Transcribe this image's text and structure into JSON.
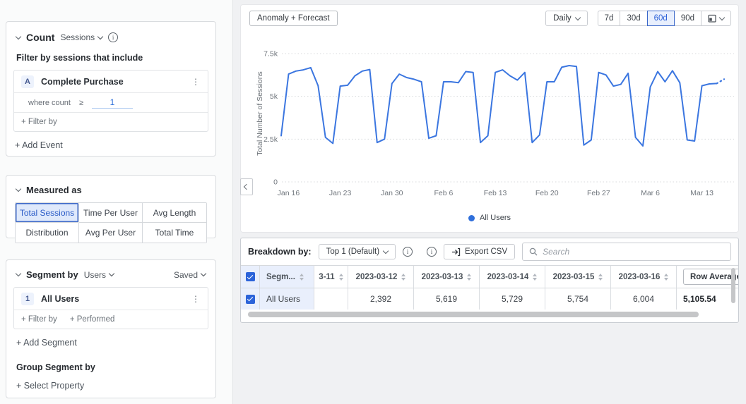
{
  "sidebar": {
    "count_section": {
      "title": "Count",
      "metric_dropdown": "Sessions",
      "filter_heading": "Filter by sessions that include",
      "event_card": {
        "badge": "A",
        "name": "Complete Purchase",
        "where_label": "where count",
        "operator": "≥",
        "value": "1",
        "filter_by_label": "+ Filter by"
      },
      "add_event_label": "+ Add Event"
    },
    "measured_as": {
      "title": "Measured as",
      "selected": "Total Sessions",
      "options": [
        "Total Sessions",
        "Time Per User",
        "Avg Length",
        "Distribution",
        "Avg Per User",
        "Total Time"
      ]
    },
    "segment_section": {
      "title": "Segment by",
      "type_dropdown": "Users",
      "saved_dropdown": "Saved",
      "segment_card": {
        "badge": "1",
        "name": "All Users",
        "filter_by_label": "+ Filter by",
        "performed_label": "+ Performed"
      },
      "add_segment_label": "+ Add Segment",
      "group_heading": "Group Segment by",
      "select_property_label": "+ Select Property"
    }
  },
  "chart_panel": {
    "anomaly_forecast_label": "Anomaly + Forecast",
    "granularity_dropdown": "Daily",
    "range_options": [
      "7d",
      "30d",
      "60d",
      "90d"
    ],
    "selected_range": "60d",
    "legend_label": "All Users",
    "legend_color": "#2f6fdb"
  },
  "chart_data": {
    "type": "line",
    "title": "",
    "xlabel": "",
    "ylabel": "Total Number of Sessions",
    "x_tick_labels": [
      "Jan 16",
      "Jan 23",
      "Jan 30",
      "Feb 6",
      "Feb 13",
      "Feb 20",
      "Feb 27",
      "Mar 6",
      "Mar 13"
    ],
    "x_tick_indices": [
      1,
      8,
      15,
      22,
      29,
      36,
      43,
      50,
      57
    ],
    "y_ticks": [
      0,
      2500,
      5000,
      7500
    ],
    "y_tick_labels": [
      "0",
      "2.5k",
      "5k",
      "7.5k"
    ],
    "ylim": [
      0,
      8000
    ],
    "grid": "horizontal-dotted",
    "legend_position": "bottom",
    "series": [
      {
        "name": "All Users",
        "color": "#3b76e0",
        "forecast_tail_points": 1,
        "dates": [
          "2023-01-15",
          "2023-01-16",
          "2023-01-17",
          "2023-01-18",
          "2023-01-19",
          "2023-01-20",
          "2023-01-21",
          "2023-01-22",
          "2023-01-23",
          "2023-01-24",
          "2023-01-25",
          "2023-01-26",
          "2023-01-27",
          "2023-01-28",
          "2023-01-29",
          "2023-01-30",
          "2023-01-31",
          "2023-02-01",
          "2023-02-02",
          "2023-02-03",
          "2023-02-04",
          "2023-02-05",
          "2023-02-06",
          "2023-02-07",
          "2023-02-08",
          "2023-02-09",
          "2023-02-10",
          "2023-02-11",
          "2023-02-12",
          "2023-02-13",
          "2023-02-14",
          "2023-02-15",
          "2023-02-16",
          "2023-02-17",
          "2023-02-18",
          "2023-02-19",
          "2023-02-20",
          "2023-02-21",
          "2023-02-22",
          "2023-02-23",
          "2023-02-24",
          "2023-02-25",
          "2023-02-26",
          "2023-02-27",
          "2023-02-28",
          "2023-03-01",
          "2023-03-02",
          "2023-03-03",
          "2023-03-04",
          "2023-03-05",
          "2023-03-06",
          "2023-03-07",
          "2023-03-08",
          "2023-03-09",
          "2023-03-10",
          "2023-03-11",
          "2023-03-12",
          "2023-03-13",
          "2023-03-14",
          "2023-03-15",
          "2023-03-16"
        ],
        "values": [
          2700,
          6300,
          6480,
          6550,
          6680,
          5620,
          2600,
          2250,
          5600,
          5650,
          6200,
          6480,
          6570,
          2300,
          2500,
          5750,
          6300,
          6100,
          6000,
          5850,
          2550,
          2700,
          5850,
          5850,
          5800,
          6450,
          6400,
          2300,
          2700,
          6400,
          6550,
          6200,
          5950,
          6400,
          2300,
          2750,
          5850,
          5850,
          6700,
          6800,
          6750,
          2150,
          2450,
          6400,
          6250,
          5600,
          5700,
          6350,
          2600,
          2100,
          5550,
          6450,
          5850,
          6500,
          5800,
          2450,
          2392,
          5619,
          5729,
          5754,
          6004
        ]
      }
    ]
  },
  "table_panel": {
    "breakdown_label": "Breakdown by:",
    "breakdown_dropdown": "Top 1 (Default)",
    "export_csv_label": "Export CSV",
    "search_placeholder": "Search",
    "columns": [
      "Segm...",
      "3-11",
      "2023-03-12",
      "2023-03-13",
      "2023-03-14",
      "2023-03-15",
      "2023-03-16"
    ],
    "row_average_label": "Row Average",
    "rows": [
      {
        "selected": true,
        "name": "All Users",
        "values": [
          "",
          "2,392",
          "5,619",
          "5,729",
          "5,754",
          "6,004"
        ],
        "row_average": "5,105.54"
      }
    ]
  },
  "colors": {
    "accent_blue": "#2c62d9",
    "line_blue": "#3b76e0",
    "selected_bg": "#e8effd",
    "light_blue_cell": "#e9effc"
  }
}
